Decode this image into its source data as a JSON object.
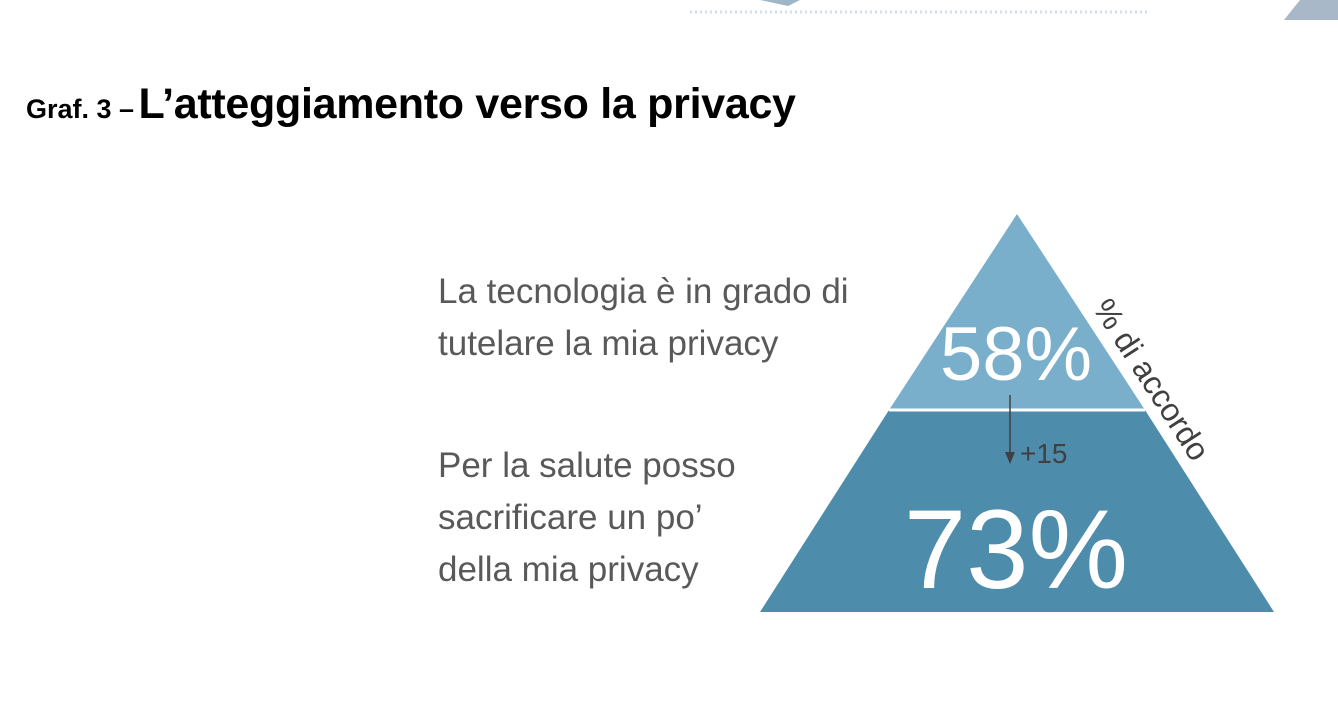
{
  "title": {
    "prefix": "Graf. 3 –",
    "main": "L’atteggiamento verso la privacy"
  },
  "statements": {
    "top": [
      "La tecnologia è in grado di",
      "tutelare la mia privacy"
    ],
    "bottom": [
      "Per la salute posso",
      "sacrificare un po’",
      "della mia privacy"
    ]
  },
  "pyramid": {
    "top_value": "58%",
    "bottom_value": "73%",
    "delta": "+15",
    "side_label": "% di accordo"
  },
  "colors": {
    "top_tier": "#79AFCB",
    "bottom_tier": "#4E8CAC",
    "divider": "#FFFFFF",
    "statement_text": "#595959",
    "arrow": "#404040"
  }
}
